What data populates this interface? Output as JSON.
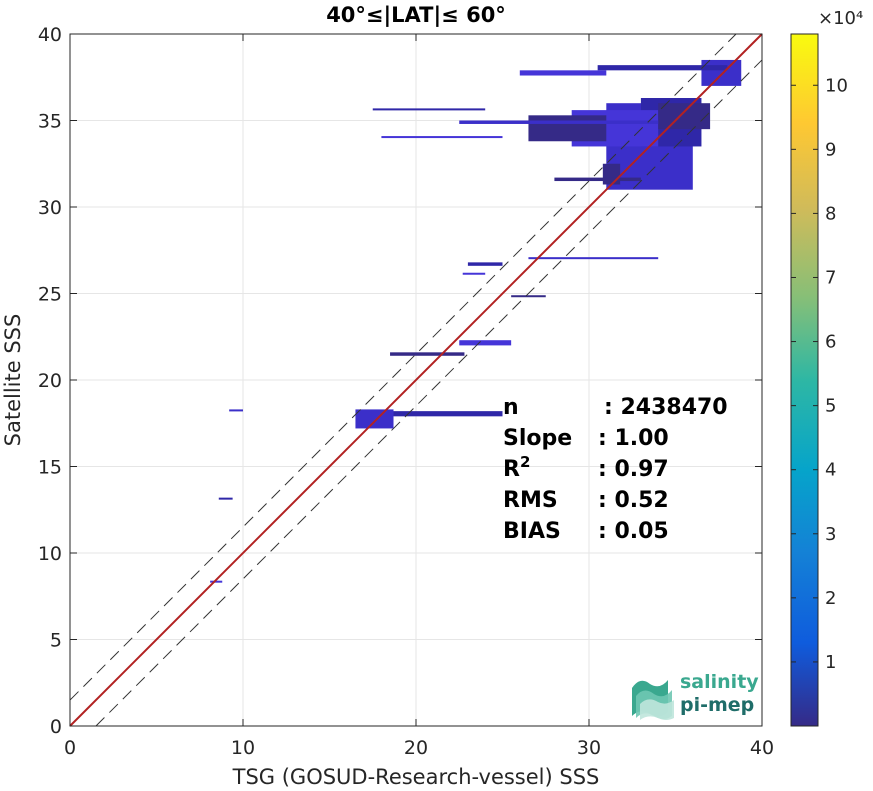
{
  "chart_data": {
    "type": "heatmap",
    "title": "40°≤|LAT|≤ 60°",
    "xlabel": "TSG (GOSUD-Research-vessel) SSS",
    "ylabel": "Satellite SSS",
    "xlim": [
      0,
      40
    ],
    "ylim": [
      0,
      40
    ],
    "x_ticks": [
      "0",
      "10",
      "20",
      "30",
      "40"
    ],
    "y_ticks": [
      "0",
      "5",
      "10",
      "15",
      "20",
      "25",
      "30",
      "35",
      "40"
    ],
    "grid": true,
    "colorbar": {
      "range": [
        0,
        108000
      ],
      "exponent_label": "×10⁴",
      "ticks": [
        {
          "value": 10000,
          "label": "1"
        },
        {
          "value": 20000,
          "label": "2"
        },
        {
          "value": 30000,
          "label": "3"
        },
        {
          "value": 40000,
          "label": "4"
        },
        {
          "value": 50000,
          "label": "5"
        },
        {
          "value": 60000,
          "label": "6"
        },
        {
          "value": 70000,
          "label": "7"
        },
        {
          "value": 80000,
          "label": "8"
        },
        {
          "value": 90000,
          "label": "9"
        },
        {
          "value": 100000,
          "label": "10"
        }
      ],
      "colormap": "parula"
    },
    "reference_lines": {
      "identity": {
        "slope": 1,
        "offset": 0,
        "color": "#b22222"
      },
      "bounds": {
        "offset": 1.5,
        "style": "dashed",
        "color": "#333333"
      }
    },
    "density_cells": [
      {
        "x0": 31,
        "x1": 36,
        "y0": 31,
        "y1": 36
      },
      {
        "x0": 33,
        "x1": 36.5,
        "y0": 33.5,
        "y1": 36.3
      },
      {
        "x0": 29,
        "x1": 34,
        "y0": 33.5,
        "y1": 35.6
      },
      {
        "x0": 26.5,
        "x1": 31,
        "y0": 33.8,
        "y1": 35.3
      },
      {
        "x0": 36.5,
        "x1": 38.8,
        "y0": 37.0,
        "y1": 38.5
      },
      {
        "x0": 30.5,
        "x1": 38,
        "y0": 37.9,
        "y1": 38.2
      },
      {
        "x0": 26,
        "x1": 31,
        "y0": 37.6,
        "y1": 37.9
      },
      {
        "x0": 34,
        "x1": 37,
        "y0": 34.5,
        "y1": 36.0
      },
      {
        "x0": 16.5,
        "x1": 18.7,
        "y0": 17.2,
        "y1": 18.3
      },
      {
        "x0": 18.7,
        "x1": 25,
        "y0": 17.9,
        "y1": 18.2
      },
      {
        "x0": 22.5,
        "x1": 25.5,
        "y0": 22.0,
        "y1": 22.3
      },
      {
        "x0": 18.5,
        "x1": 22.8,
        "y0": 21.4,
        "y1": 21.6
      },
      {
        "x0": 9.2,
        "x1": 10.0,
        "y0": 18.2,
        "y1": 18.3
      },
      {
        "x0": 8.6,
        "x1": 9.4,
        "y0": 13.1,
        "y1": 13.2
      },
      {
        "x0": 8.1,
        "x1": 8.8,
        "y0": 8.3,
        "y1": 8.4
      },
      {
        "x0": 30.8,
        "x1": 31.8,
        "y0": 31.3,
        "y1": 32.5
      },
      {
        "x0": 22.5,
        "x1": 34,
        "y0": 34.8,
        "y1": 35.0
      },
      {
        "x0": 17.5,
        "x1": 24,
        "y0": 35.6,
        "y1": 35.7
      },
      {
        "x0": 18,
        "x1": 25,
        "y0": 34.0,
        "y1": 34.1
      },
      {
        "x0": 28,
        "x1": 33,
        "y0": 31.5,
        "y1": 31.7
      },
      {
        "x0": 26.5,
        "x1": 34,
        "y0": 27.0,
        "y1": 27.1
      },
      {
        "x0": 23,
        "x1": 25,
        "y0": 26.6,
        "y1": 26.8
      },
      {
        "x0": 22.7,
        "x1": 24,
        "y0": 26.1,
        "y1": 26.2
      },
      {
        "x0": 25.5,
        "x1": 27.5,
        "y0": 24.8,
        "y1": 24.9
      }
    ],
    "stats": [
      {
        "label": "n",
        "value": ": 2438470"
      },
      {
        "label": "Slope",
        "value": ": 1.00"
      },
      {
        "label": "R",
        "sup": "2",
        "value": ": 0.97"
      },
      {
        "label": "RMS",
        "value": ": 0.52"
      },
      {
        "label": "BIAS",
        "value": ": 0.05"
      }
    ]
  },
  "logo": {
    "line1": "salinity",
    "line2": "pi-mep"
  }
}
